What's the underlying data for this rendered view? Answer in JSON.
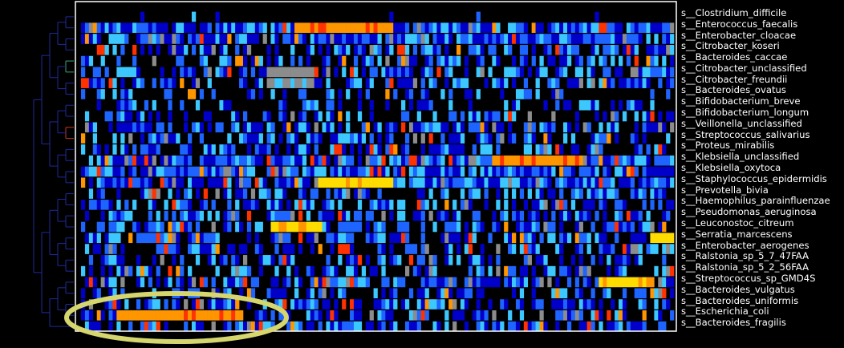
{
  "chart_data": {
    "type": "heatmap",
    "title": "",
    "xlabel": "",
    "ylabel": "",
    "rows": [
      "s__Clostridium_difficile",
      "s__Enterococcus_faecalis",
      "s__Enterobacter_cloacae",
      "s__Citrobacter_koseri",
      "s__Bacteroides_caccae",
      "s__Citrobacter_unclassified",
      "s__Citrobacter_freundii",
      "s__Bacteroides_ovatus",
      "s__Bifidobacterium_breve",
      "s__Bifidobacterium_longum",
      "s__Veillonella_unclassified",
      "s__Streptococcus_salivarius",
      "s__Proteus_mirabilis",
      "s__Klebsiella_unclassified",
      "s__Klebsiella_oxytoca",
      "s__Staphylococcus_epidermidis",
      "s__Prevotella_bivia",
      "s__Haemophilus_parainfluenzae",
      "s__Pseudomonas_aeruginosa",
      "s__Leuconostoc_citreum",
      "s__Serratia_marcescens",
      "s__Enterobacter_aerogenes",
      "s__Ralstonia_sp_5_7_47FAA",
      "s__Ralstonia_sp_5_2_56FAA",
      "s__Streptococcus_sp_GMD4S",
      "s__Bacteroides_vulgatus",
      "s__Bacteroides_uniformis",
      "s__Escherichia_coli",
      "s__Bacteroides_fragilis"
    ],
    "colormap": [
      "#000000",
      "#0000c8",
      "#1e64ff",
      "#3cc8ff",
      "#8c8c8c",
      "#ff3200",
      "#ff9600",
      "#ffdc00"
    ],
    "row_density": [
      0.05,
      0.95,
      0.85,
      0.6,
      0.5,
      0.7,
      0.6,
      0.35,
      0.35,
      0.45,
      0.6,
      0.6,
      0.55,
      0.9,
      0.9,
      0.9,
      0.5,
      0.6,
      0.55,
      0.55,
      0.6,
      0.55,
      0.55,
      0.5,
      0.65,
      0.55,
      0.6,
      0.6,
      0.55
    ],
    "bands": [
      {
        "row": 1,
        "from": 0.36,
        "to": 0.52,
        "level": 6
      },
      {
        "row": 5,
        "from": 0.31,
        "to": 0.39,
        "level": 4
      },
      {
        "row": 6,
        "from": 0.31,
        "to": 0.39,
        "level": 4
      },
      {
        "row": 13,
        "from": 0.69,
        "to": 0.84,
        "level": 6
      },
      {
        "row": 15,
        "from": 0.4,
        "to": 0.52,
        "level": 7
      },
      {
        "row": 19,
        "from": 0.32,
        "to": 0.4,
        "level": 7
      },
      {
        "row": 20,
        "from": 0.96,
        "to": 1.0,
        "level": 7
      },
      {
        "row": 24,
        "from": 0.87,
        "to": 0.96,
        "level": 7
      },
      {
        "row": 27,
        "from": 0.06,
        "to": 0.27,
        "level": 6
      }
    ],
    "annotation": {
      "type": "ellipse",
      "color": "#d6d66e",
      "target_row": "s__Escherichia_coli"
    }
  }
}
